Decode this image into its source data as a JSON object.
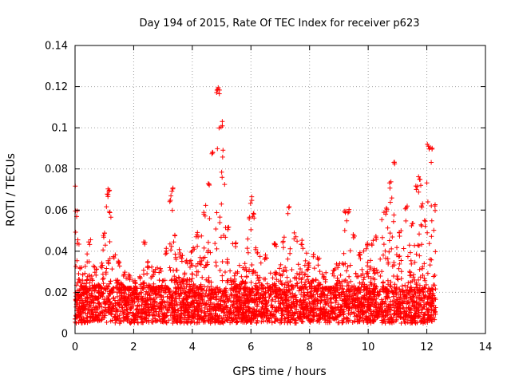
{
  "chart_data": {
    "type": "scatter",
    "title": "Day 194 of 2015, Rate Of TEC Index for receiver p623",
    "xlabel": "GPS time / hours",
    "ylabel": "ROTI / TECUs",
    "xlim": [
      0,
      14
    ],
    "ylim": [
      0,
      0.14
    ],
    "grid": true,
    "marker": "+",
    "color": "#ff0000",
    "x_ticks": [
      0,
      2,
      4,
      6,
      8,
      10,
      12,
      14
    ],
    "x_tick_labels": [
      "0",
      "2",
      "4",
      "6",
      "8",
      "10",
      "12",
      "14"
    ],
    "y_ticks": [
      0,
      0.02,
      0.04,
      0.06,
      0.08,
      0.1,
      0.12,
      0.14
    ],
    "y_tick_labels": [
      "0",
      "0.02",
      "0.04",
      "0.06",
      "0.08",
      "0.1",
      "0.12",
      "0.14"
    ],
    "series": [
      {
        "name": "ROTI",
        "data_span_hours": [
          0,
          12.3
        ],
        "envelope_x": [
          0.0,
          0.05,
          0.1,
          0.2,
          0.3,
          0.5,
          0.7,
          0.9,
          1.0,
          1.1,
          1.15,
          1.2,
          1.35,
          1.5,
          1.7,
          1.9,
          2.05,
          2.1,
          2.2,
          2.35,
          2.5,
          2.7,
          2.9,
          3.1,
          3.25,
          3.3,
          3.4,
          3.6,
          3.8,
          4.0,
          4.2,
          4.4,
          4.55,
          4.7,
          4.85,
          4.9,
          5.0,
          5.2,
          5.5,
          5.8,
          6.0,
          6.1,
          6.2,
          6.5,
          6.8,
          7.1,
          7.3,
          7.5,
          7.75,
          8.0,
          8.15,
          8.3,
          8.5,
          8.8,
          9.0,
          9.2,
          9.35,
          9.5,
          9.7,
          10.0,
          10.3,
          10.6,
          10.75,
          10.9,
          11.1,
          11.3,
          11.5,
          11.65,
          11.75,
          11.85,
          11.95,
          12.05,
          12.15,
          12.3
        ],
        "envelope_y": [
          0.072,
          0.06,
          0.047,
          0.035,
          0.03,
          0.046,
          0.033,
          0.035,
          0.05,
          0.07,
          0.073,
          0.06,
          0.04,
          0.037,
          0.032,
          0.03,
          0.028,
          0.02,
          0.03,
          0.045,
          0.035,
          0.031,
          0.033,
          0.042,
          0.068,
          0.072,
          0.048,
          0.04,
          0.037,
          0.042,
          0.05,
          0.06,
          0.075,
          0.09,
          0.121,
          0.12,
          0.104,
          0.053,
          0.045,
          0.035,
          0.067,
          0.06,
          0.042,
          0.04,
          0.046,
          0.045,
          0.062,
          0.05,
          0.046,
          0.035,
          0.04,
          0.038,
          0.03,
          0.032,
          0.036,
          0.06,
          0.062,
          0.05,
          0.04,
          0.045,
          0.048,
          0.062,
          0.074,
          0.086,
          0.05,
          0.062,
          0.055,
          0.072,
          0.078,
          0.065,
          0.055,
          0.093,
          0.092,
          0.063
        ],
        "baseline_range": [
          0.005,
          0.022
        ]
      }
    ]
  }
}
